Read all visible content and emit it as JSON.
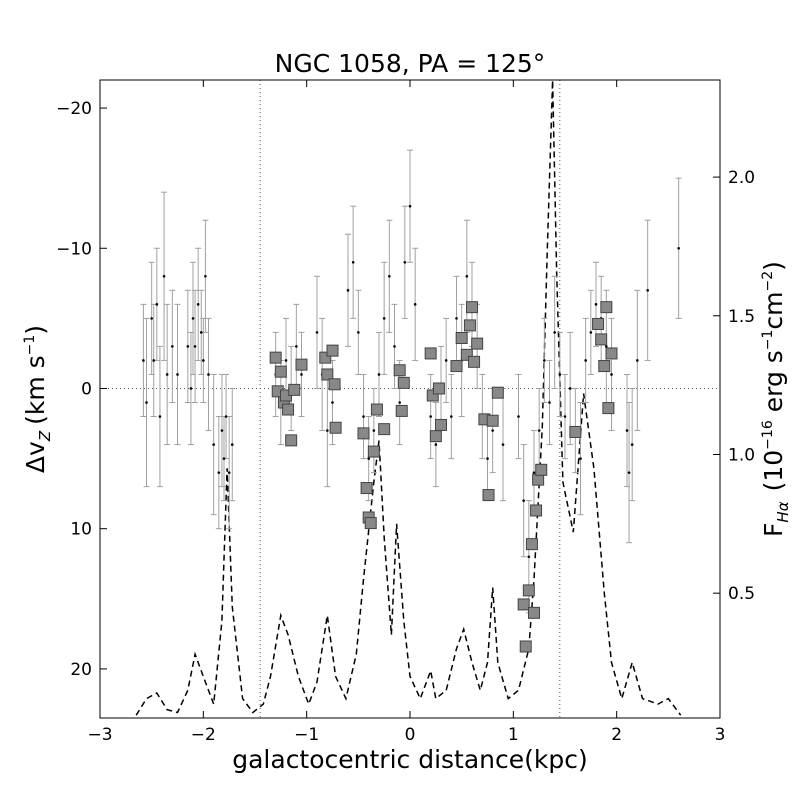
{
  "chart_data": {
    "type": "scatter",
    "title": "NGC 1058, PA = 125°",
    "xlabel": "galactocentric distance(kpc)",
    "ylabel_left": "Δv",
    "ylabel_left_sub": "Z",
    "ylabel_left_units": "(km s",
    "ylabel_left_units_sup": "−1",
    "ylabel_left_units_close": ")",
    "ylabel_right": "F",
    "ylabel_right_sub": "Hα",
    "ylabel_right_units": "(10",
    "ylabel_right_units_sup": "−16",
    "ylabel_right_units_mid": "erg s",
    "ylabel_right_units_sup2": "−1",
    "ylabel_right_units_mid2": "cm",
    "ylabel_right_units_sup3": "−2",
    "ylabel_right_units_close": ")",
    "xlim": [
      -3,
      3
    ],
    "ylim_left": [
      23.5,
      -22
    ],
    "ylim_right": [
      0.05,
      2.35
    ],
    "x_ticks": [
      -3,
      -2,
      -1,
      0,
      1,
      2,
      3
    ],
    "x_tick_labels": [
      "−3",
      "−2",
      "−1",
      "0",
      "1",
      "2",
      "3"
    ],
    "y_left_ticks": [
      -20,
      -10,
      0,
      10,
      20
    ],
    "y_left_tick_labels": [
      "−20",
      "−10",
      "0",
      "10",
      "20"
    ],
    "y_right_ticks": [
      0.5,
      1.0,
      1.5,
      2.0
    ],
    "y_right_tick_labels": [
      "0.5",
      "1.0",
      "1.5",
      "2.0"
    ],
    "reference_lines": {
      "vertical_x": [
        -1.45,
        1.45
      ],
      "horizontal_y": [
        0
      ]
    },
    "colors": {
      "points": "#000000",
      "errorbars": "#a0a0a0",
      "squares_fill": "#888888",
      "squares_edge": "#444444",
      "flux": "#000000",
      "reference": "#555555"
    },
    "velocity_points": [
      {
        "x": -2.58,
        "y": -2,
        "err": 4
      },
      {
        "x": -2.55,
        "y": 1,
        "err": 6
      },
      {
        "x": -2.5,
        "y": -5,
        "err": 4
      },
      {
        "x": -2.48,
        "y": -2,
        "err": 4
      },
      {
        "x": -2.45,
        "y": -6,
        "err": 4
      },
      {
        "x": -2.42,
        "y": 2,
        "err": 5
      },
      {
        "x": -2.38,
        "y": -8,
        "err": 6
      },
      {
        "x": -2.35,
        "y": -1,
        "err": 5
      },
      {
        "x": -2.3,
        "y": -3,
        "err": 4
      },
      {
        "x": -2.25,
        "y": -1,
        "err": 5
      },
      {
        "x": -2.15,
        "y": -3,
        "err": 4
      },
      {
        "x": -2.12,
        "y": 0,
        "err": 4
      },
      {
        "x": -2.1,
        "y": -5,
        "err": 4
      },
      {
        "x": -2.08,
        "y": -3,
        "err": 4
      },
      {
        "x": -2.05,
        "y": -6,
        "err": 4
      },
      {
        "x": -2.02,
        "y": -4,
        "err": 3
      },
      {
        "x": -2.0,
        "y": -2,
        "err": 3
      },
      {
        "x": -1.98,
        "y": -8,
        "err": 4
      },
      {
        "x": -1.95,
        "y": -1,
        "err": 4
      },
      {
        "x": -1.9,
        "y": 4,
        "err": 5
      },
      {
        "x": -1.85,
        "y": 6,
        "err": 4
      },
      {
        "x": -1.82,
        "y": 3,
        "err": 4
      },
      {
        "x": -1.8,
        "y": 5,
        "err": 3
      },
      {
        "x": -1.78,
        "y": 2,
        "err": 3
      },
      {
        "x": -1.75,
        "y": 6,
        "err": 4
      },
      {
        "x": -1.72,
        "y": 4,
        "err": 4
      },
      {
        "x": -1.3,
        "y": -1,
        "err": 3
      },
      {
        "x": -1.25,
        "y": 1,
        "err": 3
      },
      {
        "x": -1.2,
        "y": -2,
        "err": 3
      },
      {
        "x": -1.15,
        "y": 0,
        "err": 3
      },
      {
        "x": -1.1,
        "y": -3,
        "err": 3
      },
      {
        "x": -1.05,
        "y": -1,
        "err": 3
      },
      {
        "x": -0.9,
        "y": -4,
        "err": 4
      },
      {
        "x": -0.85,
        "y": -1,
        "err": 4
      },
      {
        "x": -0.8,
        "y": 3,
        "err": 4
      },
      {
        "x": -0.75,
        "y": 1,
        "err": 3
      },
      {
        "x": -0.6,
        "y": -7,
        "err": 4
      },
      {
        "x": -0.55,
        "y": -9,
        "err": 4
      },
      {
        "x": -0.5,
        "y": -4,
        "err": 3
      },
      {
        "x": -0.45,
        "y": 2,
        "err": 3
      },
      {
        "x": -0.4,
        "y": 5,
        "err": 3
      },
      {
        "x": -0.35,
        "y": 3,
        "err": 3
      },
      {
        "x": -0.3,
        "y": -1,
        "err": 3
      },
      {
        "x": -0.25,
        "y": -5,
        "err": 4
      },
      {
        "x": -0.2,
        "y": -8,
        "err": 4
      },
      {
        "x": -0.15,
        "y": -3,
        "err": 3
      },
      {
        "x": -0.1,
        "y": 1,
        "err": 3
      },
      {
        "x": -0.05,
        "y": -9,
        "err": 4
      },
      {
        "x": 0.0,
        "y": -13,
        "err": 4
      },
      {
        "x": 0.05,
        "y": -6,
        "err": 4
      },
      {
        "x": 0.2,
        "y": 2,
        "err": 3
      },
      {
        "x": 0.25,
        "y": 4,
        "err": 3
      },
      {
        "x": 0.3,
        "y": 0,
        "err": 3
      },
      {
        "x": 0.35,
        "y": -2,
        "err": 3
      },
      {
        "x": 0.4,
        "y": 2,
        "err": 3
      },
      {
        "x": 0.45,
        "y": -5,
        "err": 3
      },
      {
        "x": 0.5,
        "y": -2,
        "err": 4
      },
      {
        "x": 0.55,
        "y": -8,
        "err": 4
      },
      {
        "x": 0.6,
        "y": -6,
        "err": 3
      },
      {
        "x": 0.65,
        "y": -3,
        "err": 3
      },
      {
        "x": 0.7,
        "y": 2,
        "err": 3
      },
      {
        "x": 0.75,
        "y": 5,
        "err": 3
      },
      {
        "x": 0.8,
        "y": 3,
        "err": 3
      },
      {
        "x": 0.9,
        "y": 4,
        "err": 4
      },
      {
        "x": 1.05,
        "y": 2,
        "err": 3
      },
      {
        "x": 1.1,
        "y": 8,
        "err": 4
      },
      {
        "x": 1.15,
        "y": 12,
        "err": 4
      },
      {
        "x": 1.2,
        "y": 6,
        "err": 3
      },
      {
        "x": 1.25,
        "y": 3,
        "err": 3
      },
      {
        "x": 1.3,
        "y": -2,
        "err": 3
      },
      {
        "x": 1.35,
        "y": 1,
        "err": 3
      },
      {
        "x": 1.4,
        "y": -4,
        "err": 4
      },
      {
        "x": 1.45,
        "y": -1,
        "err": 3
      },
      {
        "x": 1.5,
        "y": 2,
        "err": 3
      },
      {
        "x": 1.55,
        "y": 0,
        "err": 4
      },
      {
        "x": 1.6,
        "y": 3,
        "err": 3
      },
      {
        "x": 1.65,
        "y": 5,
        "err": 4
      },
      {
        "x": 1.7,
        "y": -2,
        "err": 3
      },
      {
        "x": 1.75,
        "y": -4,
        "err": 3
      },
      {
        "x": 1.8,
        "y": -6,
        "err": 3
      },
      {
        "x": 1.85,
        "y": -5,
        "err": 3
      },
      {
        "x": 1.9,
        "y": -3,
        "err": 4
      },
      {
        "x": 1.95,
        "y": -1,
        "err": 4
      },
      {
        "x": 2.1,
        "y": 3,
        "err": 4
      },
      {
        "x": 2.12,
        "y": 6,
        "err": 5
      },
      {
        "x": 2.15,
        "y": 4,
        "err": 4
      },
      {
        "x": 2.2,
        "y": -2,
        "err": 5
      },
      {
        "x": 2.3,
        "y": -7,
        "err": 5
      },
      {
        "x": 2.6,
        "y": -10,
        "err": 5
      }
    ],
    "square_points": [
      {
        "x": -1.3,
        "y": -2.2
      },
      {
        "x": -1.28,
        "y": 0.2
      },
      {
        "x": -1.25,
        "y": -1.2
      },
      {
        "x": -1.22,
        "y": 1.0
      },
      {
        "x": -1.2,
        "y": 0.5
      },
      {
        "x": -1.18,
        "y": 1.5
      },
      {
        "x": -1.15,
        "y": 3.7
      },
      {
        "x": -1.12,
        "y": 0.1
      },
      {
        "x": -1.05,
        "y": -1.7
      },
      {
        "x": -0.82,
        "y": -2.2
      },
      {
        "x": -0.8,
        "y": -1.0
      },
      {
        "x": -0.75,
        "y": -2.7
      },
      {
        "x": -0.73,
        "y": -0.3
      },
      {
        "x": -0.72,
        "y": 2.8
      },
      {
        "x": -0.45,
        "y": 3.2
      },
      {
        "x": -0.42,
        "y": 7.1
      },
      {
        "x": -0.4,
        "y": 9.2
      },
      {
        "x": -0.38,
        "y": 9.6
      },
      {
        "x": -0.35,
        "y": 4.5
      },
      {
        "x": -0.32,
        "y": 1.5
      },
      {
        "x": -0.25,
        "y": 2.9
      },
      {
        "x": -0.1,
        "y": -1.3
      },
      {
        "x": -0.08,
        "y": 1.6
      },
      {
        "x": -0.06,
        "y": -0.4
      },
      {
        "x": 0.2,
        "y": -2.5
      },
      {
        "x": 0.22,
        "y": 0.5
      },
      {
        "x": 0.25,
        "y": 3.4
      },
      {
        "x": 0.28,
        "y": 0.0
      },
      {
        "x": 0.3,
        "y": 2.6
      },
      {
        "x": 0.45,
        "y": -1.6
      },
      {
        "x": 0.5,
        "y": -3.6
      },
      {
        "x": 0.55,
        "y": -2.4
      },
      {
        "x": 0.58,
        "y": -4.5
      },
      {
        "x": 0.6,
        "y": -5.8
      },
      {
        "x": 0.62,
        "y": -1.9
      },
      {
        "x": 0.65,
        "y": -3.2
      },
      {
        "x": 0.72,
        "y": 2.2
      },
      {
        "x": 0.76,
        "y": 7.6
      },
      {
        "x": 0.8,
        "y": 2.3
      },
      {
        "x": 0.85,
        "y": 0.3
      },
      {
        "x": 1.1,
        "y": 15.4
      },
      {
        "x": 1.12,
        "y": 18.4
      },
      {
        "x": 1.15,
        "y": 14.4
      },
      {
        "x": 1.18,
        "y": 11.1
      },
      {
        "x": 1.2,
        "y": 16.0
      },
      {
        "x": 1.22,
        "y": 8.7
      },
      {
        "x": 1.24,
        "y": 6.5
      },
      {
        "x": 1.27,
        "y": 5.8
      },
      {
        "x": 1.6,
        "y": 3.1
      },
      {
        "x": 1.82,
        "y": -4.6
      },
      {
        "x": 1.85,
        "y": -3.5
      },
      {
        "x": 1.88,
        "y": -1.6
      },
      {
        "x": 1.9,
        "y": -5.8
      },
      {
        "x": 1.92,
        "y": 1.4
      },
      {
        "x": 1.95,
        "y": -2.5
      }
    ],
    "flux_curve": [
      {
        "x": -2.65,
        "y": 0.06
      },
      {
        "x": -2.55,
        "y": 0.12
      },
      {
        "x": -2.45,
        "y": 0.14
      },
      {
        "x": -2.35,
        "y": 0.08
      },
      {
        "x": -2.25,
        "y": 0.07
      },
      {
        "x": -2.15,
        "y": 0.15
      },
      {
        "x": -2.08,
        "y": 0.28
      },
      {
        "x": -2.0,
        "y": 0.2
      },
      {
        "x": -1.9,
        "y": 0.1
      },
      {
        "x": -1.82,
        "y": 0.4
      },
      {
        "x": -1.77,
        "y": 0.95
      },
      {
        "x": -1.72,
        "y": 0.45
      },
      {
        "x": -1.62,
        "y": 0.12
      },
      {
        "x": -1.52,
        "y": 0.07
      },
      {
        "x": -1.42,
        "y": 0.1
      },
      {
        "x": -1.35,
        "y": 0.2
      },
      {
        "x": -1.25,
        "y": 0.42
      },
      {
        "x": -1.18,
        "y": 0.35
      },
      {
        "x": -1.08,
        "y": 0.2
      },
      {
        "x": -0.98,
        "y": 0.1
      },
      {
        "x": -0.9,
        "y": 0.18
      },
      {
        "x": -0.8,
        "y": 0.42
      },
      {
        "x": -0.72,
        "y": 0.2
      },
      {
        "x": -0.62,
        "y": 0.12
      },
      {
        "x": -0.52,
        "y": 0.28
      },
      {
        "x": -0.45,
        "y": 0.55
      },
      {
        "x": -0.35,
        "y": 0.9
      },
      {
        "x": -0.3,
        "y": 1.05
      },
      {
        "x": -0.25,
        "y": 0.7
      },
      {
        "x": -0.18,
        "y": 0.35
      },
      {
        "x": -0.13,
        "y": 0.75
      },
      {
        "x": -0.06,
        "y": 0.4
      },
      {
        "x": 0.0,
        "y": 0.2
      },
      {
        "x": 0.1,
        "y": 0.12
      },
      {
        "x": 0.2,
        "y": 0.22
      },
      {
        "x": 0.25,
        "y": 0.12
      },
      {
        "x": 0.35,
        "y": 0.15
      },
      {
        "x": 0.45,
        "y": 0.3
      },
      {
        "x": 0.52,
        "y": 0.37
      },
      {
        "x": 0.6,
        "y": 0.25
      },
      {
        "x": 0.68,
        "y": 0.15
      },
      {
        "x": 0.75,
        "y": 0.25
      },
      {
        "x": 0.8,
        "y": 0.52
      },
      {
        "x": 0.85,
        "y": 0.25
      },
      {
        "x": 0.95,
        "y": 0.12
      },
      {
        "x": 1.05,
        "y": 0.15
      },
      {
        "x": 1.15,
        "y": 0.3
      },
      {
        "x": 1.2,
        "y": 0.55
      },
      {
        "x": 1.28,
        "y": 1.1
      },
      {
        "x": 1.33,
        "y": 1.75
      },
      {
        "x": 1.38,
        "y": 2.35
      },
      {
        "x": 1.42,
        "y": 1.65
      },
      {
        "x": 1.48,
        "y": 0.9
      },
      {
        "x": 1.58,
        "y": 0.72
      },
      {
        "x": 1.68,
        "y": 1.22
      },
      {
        "x": 1.78,
        "y": 0.95
      },
      {
        "x": 1.88,
        "y": 0.5
      },
      {
        "x": 1.95,
        "y": 0.25
      },
      {
        "x": 2.05,
        "y": 0.12
      },
      {
        "x": 2.15,
        "y": 0.25
      },
      {
        "x": 2.25,
        "y": 0.12
      },
      {
        "x": 2.4,
        "y": 0.1
      },
      {
        "x": 2.5,
        "y": 0.12
      },
      {
        "x": 2.62,
        "y": 0.06
      }
    ]
  }
}
